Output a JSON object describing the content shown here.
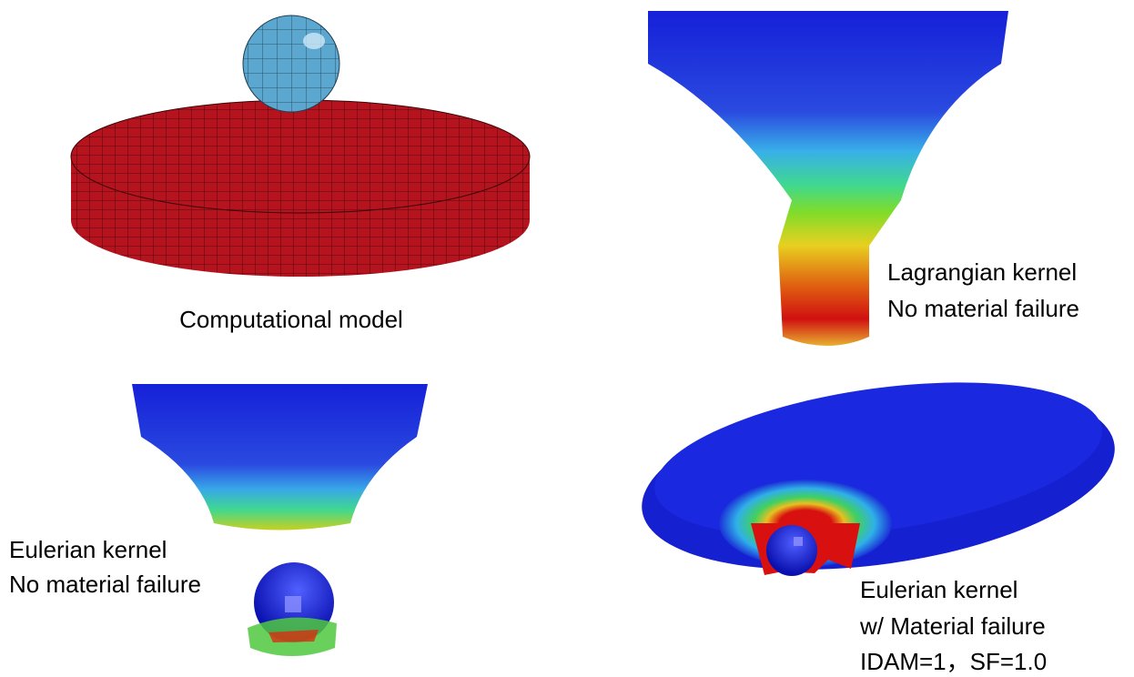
{
  "panels": [
    {
      "caption": [
        "Computational model"
      ]
    },
    {
      "caption": [
        "Lagrangian kernel",
        "No material failure"
      ]
    },
    {
      "caption": [
        "Eulerian kernel",
        "No material failure"
      ]
    },
    {
      "caption": [
        "Eulerian kernel",
        "w/ Material failure",
        "IDAM=1，SF=1.0"
      ]
    }
  ]
}
